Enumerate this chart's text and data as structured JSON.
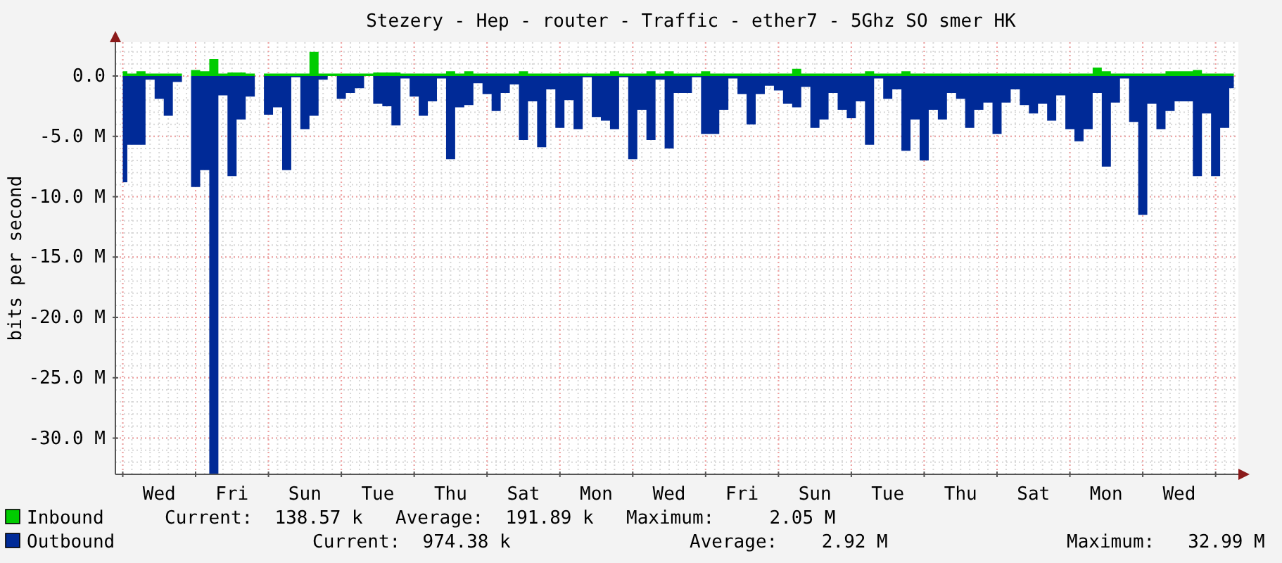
{
  "chart_data": {
    "type": "area",
    "title": "Stezery - Hep - router - Traffic - ether7 - 5Ghz SO smer HK",
    "ylabel": "bits per second",
    "ylim": [
      -33,
      2.8
    ],
    "yticks": [
      {
        "value": 0,
        "label": "0.0"
      },
      {
        "value": -5,
        "label": "-5.0 M"
      },
      {
        "value": -10,
        "label": "-10.0 M"
      },
      {
        "value": -15,
        "label": "-15.0 M"
      },
      {
        "value": -20,
        "label": "-20.0 M"
      },
      {
        "value": -25,
        "label": "-25.0 M"
      },
      {
        "value": -30,
        "label": "-30.0 M"
      }
    ],
    "categories": [
      null,
      null,
      null,
      null,
      "Wed",
      null,
      null,
      null,
      null,
      null,
      null,
      null,
      "Fri",
      null,
      null,
      null,
      null,
      null,
      null,
      null,
      "Sun",
      null,
      null,
      null,
      null,
      null,
      null,
      null,
      "Tue",
      null,
      null,
      null,
      null,
      null,
      null,
      null,
      "Thu",
      null,
      null,
      null,
      null,
      null,
      null,
      null,
      "Sat",
      null,
      null,
      null,
      null,
      null,
      null,
      null,
      "Mon",
      null,
      null,
      null,
      null,
      null,
      null,
      null,
      "Wed",
      null,
      null,
      null,
      null,
      null,
      null,
      null,
      "Fri",
      null,
      null,
      null,
      null,
      null,
      null,
      null,
      "Sun",
      null,
      null,
      null,
      null,
      null,
      null,
      null,
      "Tue",
      null,
      null,
      null,
      null,
      null,
      null,
      null,
      "Thu",
      null,
      null,
      null,
      null,
      null,
      null,
      null,
      "Sat",
      null,
      null,
      null,
      null,
      null,
      null,
      null,
      "Mon",
      null,
      null,
      null,
      null,
      null,
      null,
      null,
      "Wed",
      null,
      null,
      null,
      null,
      null,
      null
    ],
    "grid": true,
    "legend": "bottom",
    "series": [
      {
        "name": "Inbound",
        "color": "#00cc00",
        "values": [
          0.4,
          0.2,
          0.4,
          0.2,
          0.2,
          0.2,
          0.2,
          0,
          0.5,
          0.4,
          1.4,
          0.2,
          0.3,
          0.3,
          0.2,
          0,
          0.2,
          0.2,
          0.2,
          0.2,
          0.2,
          2.0,
          0.2,
          0.2,
          0.2,
          0.2,
          0.2,
          0.2,
          0.3,
          0.3,
          0.3,
          0.2,
          0.2,
          0.2,
          0.2,
          0.2,
          0.4,
          0.2,
          0.4,
          0.2,
          0.2,
          0.2,
          0.2,
          0.2,
          0.4,
          0.2,
          0.2,
          0.2,
          0.2,
          0.2,
          0.2,
          0.2,
          0.2,
          0.2,
          0.4,
          0.2,
          0.2,
          0.2,
          0.4,
          0.2,
          0.4,
          0.2,
          0.2,
          0.2,
          0.4,
          0.2,
          0.2,
          0.2,
          0.2,
          0.2,
          0.2,
          0.2,
          0.2,
          0.2,
          0.6,
          0.2,
          0.2,
          0.2,
          0.2,
          0.2,
          0.2,
          0.2,
          0.4,
          0.2,
          0.2,
          0.2,
          0.4,
          0.2,
          0.2,
          0.2,
          0.2,
          0.2,
          0.2,
          0.2,
          0.2,
          0.2,
          0.2,
          0.2,
          0.2,
          0.2,
          0.2,
          0.2,
          0.2,
          0.2,
          0.2,
          0.2,
          0.2,
          0.7,
          0.4,
          0.2,
          0.2,
          0.2,
          0.2,
          0.2,
          0.2,
          0.4,
          0.4,
          0.4,
          0.5,
          0.2,
          0.2,
          0.2,
          0.2
        ]
      },
      {
        "name": "Outbound",
        "color": "#002a97",
        "values": [
          -8.8,
          -5.7,
          -5.7,
          -0.3,
          -1.9,
          -3.3,
          -0.5,
          0,
          -9.2,
          -7.8,
          -33,
          -1.6,
          -8.3,
          -3.6,
          -1.7,
          0,
          -3.2,
          -2.6,
          -7.8,
          -0.1,
          -4.4,
          -3.3,
          -0.3,
          0,
          -1.9,
          -1.4,
          -1.0,
          0,
          -2.3,
          -2.5,
          -4.1,
          -0.2,
          -1.7,
          -3.3,
          -2.1,
          -0.2,
          -6.9,
          -2.6,
          -2.4,
          -0.6,
          -1.5,
          -2.9,
          -1.4,
          -0.7,
          -5.3,
          -2.1,
          -5.9,
          -1.1,
          -4.3,
          -2.0,
          -4.4,
          -0.1,
          -3.4,
          -3.7,
          -4.4,
          -0.1,
          -6.9,
          -2.8,
          -5.3,
          -0.3,
          -6.0,
          -1.4,
          -1.4,
          -0.1,
          -4.8,
          -4.8,
          -2.8,
          -0.2,
          -1.5,
          -4.0,
          -1.5,
          -0.8,
          -1.2,
          -2.3,
          -2.6,
          -0.9,
          -4.3,
          -3.6,
          -1.4,
          -2.8,
          -3.5,
          -2.1,
          -5.7,
          -0.2,
          -1.9,
          -1.1,
          -6.2,
          -3.6,
          -7.0,
          -2.8,
          -3.6,
          -1.4,
          -1.9,
          -4.3,
          -2.8,
          -2.2,
          -4.8,
          -2.2,
          -1.1,
          -2.4,
          -3.1,
          -2.3,
          -3.7,
          -1.6,
          -4.4,
          -5.4,
          -4.4,
          -1.4,
          -7.5,
          -2.2,
          -0.2,
          -3.8,
          -11.5,
          -2.3,
          -4.4,
          -2.9,
          -2.1,
          -2.1,
          -8.3,
          -3.1,
          -8.3,
          -4.3,
          -1.0
        ]
      }
    ],
    "annotations": [
      "Current:  138.57 k",
      "Average:  191.89 k",
      "Maximum:     2.05 M",
      "Current:  974.38 k",
      "Average:    2.92 M",
      "Maximum:   32.99 M"
    ]
  }
}
